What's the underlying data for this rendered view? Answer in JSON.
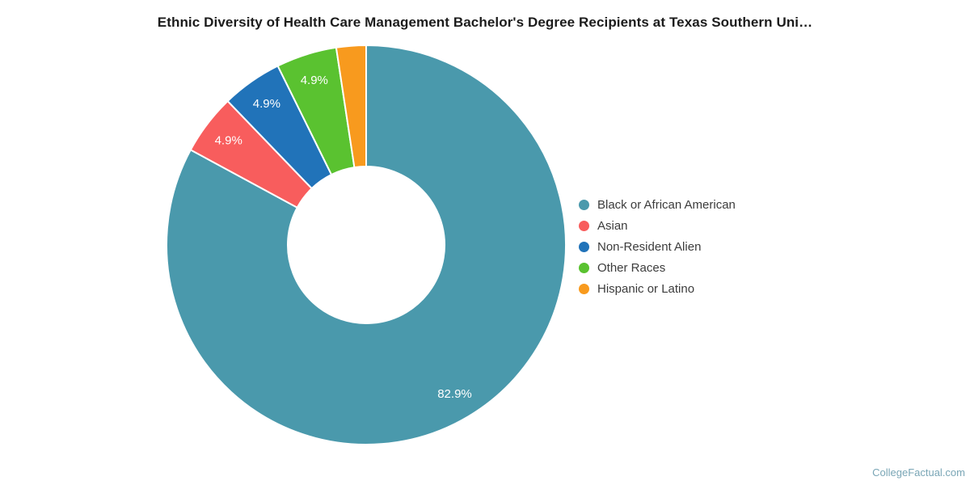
{
  "chart_data": {
    "type": "pie",
    "subtype": "donut",
    "title": "Ethnic Diversity of Health Care Management Bachelor's Degree Recipients at Texas Southern Uni…",
    "categories": [
      "Black or African American",
      "Asian",
      "Non-Resident Alien",
      "Other Races",
      "Hispanic or Latino"
    ],
    "values": [
      82.9,
      4.9,
      4.9,
      4.9,
      2.4
    ],
    "slice_labels": [
      "82.9%",
      "4.9%",
      "4.9%",
      "4.9%",
      ""
    ],
    "colors": [
      "#4A99AC",
      "#F85D5D",
      "#2173B9",
      "#5AC230",
      "#F89A1E"
    ],
    "legend_position": "right",
    "legend_marker": "circle",
    "direction": "clockwise",
    "start_angle_deg": 0,
    "inner_radius_ratio": 0.39,
    "label_color": "#ffffff",
    "grid": false
  },
  "footer": {
    "watermark": "CollegeFactual.com"
  }
}
